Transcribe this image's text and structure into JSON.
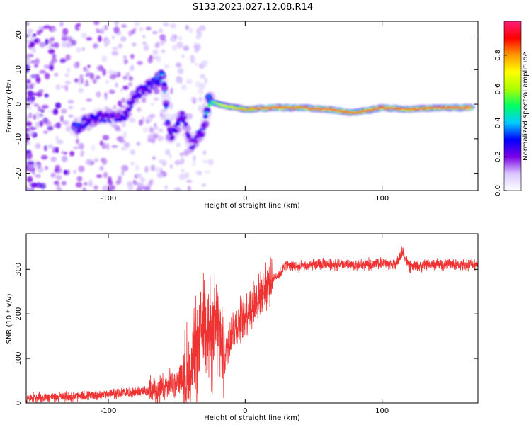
{
  "figure": {
    "title": "S133.2023.027.12.08.R14"
  },
  "chart_data": [
    {
      "type": "heatmap",
      "xlabel": "Height of straight line (km)",
      "ylabel": "Frequency (Hz)",
      "xlim": [
        -160,
        170
      ],
      "ylim": [
        -25,
        24
      ],
      "xticks": [
        -100,
        0,
        100
      ],
      "yticks": [
        -20,
        -10,
        0,
        10,
        20
      ],
      "colorbar": {
        "label": "Normalized spectral amplitude",
        "range": [
          0,
          1
        ],
        "ticks": [
          0.0,
          0.2,
          0.4,
          0.6,
          0.8
        ],
        "colors": [
          "#ffffff",
          "#d9c6ff",
          "#7b00e6",
          "#0000ff",
          "#00ccff",
          "#00ff66",
          "#aaff00",
          "#ffff00",
          "#ff9900",
          "#ff0000",
          "#ff1f7a"
        ]
      },
      "ridge": [
        {
          "x": -125,
          "y": -7,
          "amp": 0.35
        },
        {
          "x": -115,
          "y": -5,
          "amp": 0.3
        },
        {
          "x": -105,
          "y": -3.5,
          "amp": 0.3
        },
        {
          "x": -95,
          "y": -4,
          "amp": 0.25
        },
        {
          "x": -88,
          "y": -3,
          "amp": 0.3
        },
        {
          "x": -80,
          "y": 3,
          "amp": 0.3
        },
        {
          "x": -70,
          "y": 5,
          "amp": 0.3
        },
        {
          "x": -60,
          "y": 8,
          "amp": 0.4
        },
        {
          "x": -55,
          "y": -10,
          "amp": 0.3
        },
        {
          "x": -45,
          "y": -3,
          "amp": 0.3
        },
        {
          "x": -40,
          "y": -12,
          "amp": 0.25
        },
        {
          "x": -30,
          "y": -7,
          "amp": 0.3
        },
        {
          "x": -27,
          "y": 1,
          "amp": 0.5
        },
        {
          "x": -15,
          "y": -0.5,
          "amp": 0.7
        },
        {
          "x": 0,
          "y": -1.5,
          "amp": 0.8
        },
        {
          "x": 20,
          "y": -1,
          "amp": 0.95
        },
        {
          "x": 40,
          "y": -1,
          "amp": 0.85
        },
        {
          "x": 60,
          "y": -1.5,
          "amp": 0.95
        },
        {
          "x": 80,
          "y": -2.5,
          "amp": 0.85
        },
        {
          "x": 100,
          "y": -1,
          "amp": 0.9
        },
        {
          "x": 120,
          "y": -1.5,
          "amp": 0.9
        },
        {
          "x": 140,
          "y": -1,
          "amp": 0.85
        },
        {
          "x": 165,
          "y": -1,
          "amp": 0.95
        }
      ]
    },
    {
      "type": "line",
      "xlabel": "Height of straight line (km)",
      "ylabel": "SNR (10 * v/v)",
      "xlim": [
        -160,
        170
      ],
      "ylim": [
        0,
        380
      ],
      "xticks": [
        -100,
        0,
        100
      ],
      "yticks": [
        0,
        100,
        200,
        300
      ],
      "series": [
        {
          "color": "#ee3333",
          "x": [
            -160,
            -140,
            -120,
            -100,
            -80,
            -60,
            -50,
            -40,
            -35,
            -30,
            -25,
            -20,
            -15,
            -10,
            -5,
            0,
            5,
            10,
            15,
            20,
            25,
            30,
            40,
            50,
            60,
            80,
            100,
            110,
            115,
            120,
            140,
            160,
            170
          ],
          "y": [
            12,
            13,
            15,
            20,
            25,
            30,
            50,
            60,
            120,
            200,
            150,
            170,
            100,
            160,
            180,
            200,
            220,
            240,
            260,
            280,
            290,
            310,
            305,
            310,
            312,
            308,
            315,
            310,
            340,
            305,
            312,
            310,
            312
          ]
        }
      ]
    }
  ]
}
